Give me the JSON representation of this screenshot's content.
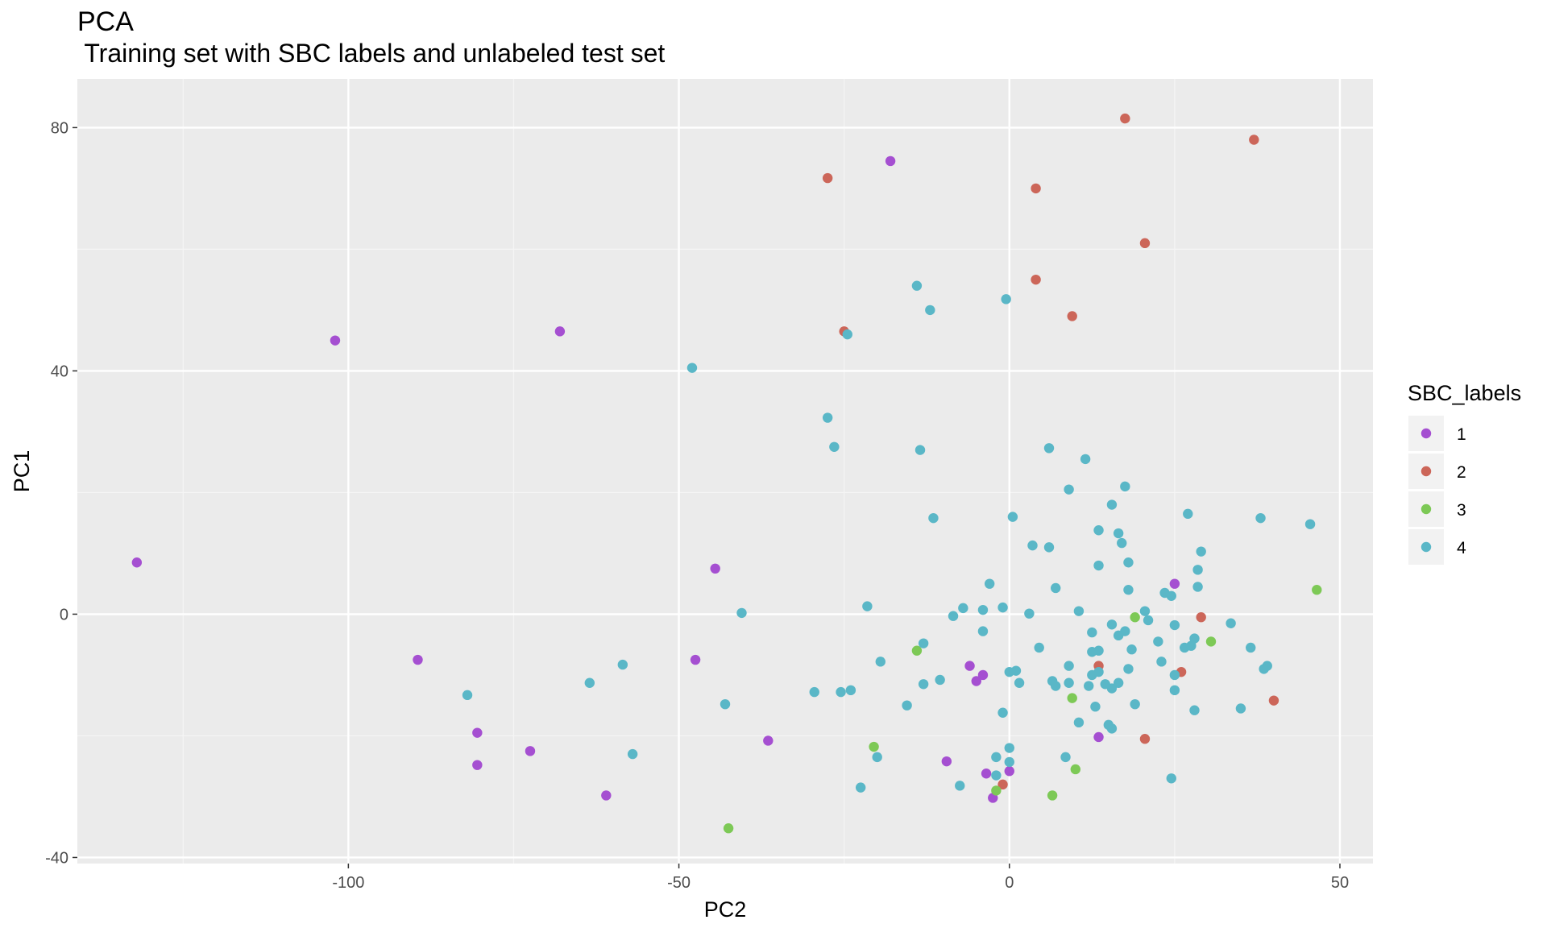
{
  "chart_data": {
    "type": "scatter",
    "title": "PCA",
    "subtitle": " Training set with SBC labels and unlabeled test set",
    "xlabel": "PC2",
    "ylabel": "PC1",
    "xlim": [
      -141,
      55
    ],
    "ylim": [
      -41,
      88
    ],
    "xticks": [
      -100,
      -50,
      0,
      50
    ],
    "yticks": [
      -40,
      0,
      40,
      80
    ],
    "xtick_labels": [
      "-100",
      "-50",
      "0",
      "50"
    ],
    "ytick_labels": [
      "-40",
      "0",
      "40",
      "80"
    ],
    "grid": true,
    "legend": {
      "title": "SBC_labels",
      "position": "right"
    },
    "series": [
      {
        "name": "1",
        "color": "#a54fd1",
        "points": [
          [
            -132,
            8.5
          ],
          [
            -102,
            45
          ],
          [
            -68,
            46.5
          ],
          [
            -18,
            74.5
          ],
          [
            -44.5,
            7.5
          ],
          [
            -89.5,
            -7.5
          ],
          [
            -47.5,
            -7.5
          ],
          [
            -80.5,
            -19.5
          ],
          [
            -80.5,
            -24.8
          ],
          [
            -72.5,
            -22.5
          ],
          [
            -61,
            -29.8
          ],
          [
            -36.5,
            -20.8
          ],
          [
            -6,
            -8.5
          ],
          [
            -5,
            -11
          ],
          [
            -4,
            -10
          ],
          [
            -9.5,
            -24.2
          ],
          [
            -3.5,
            -26.2
          ],
          [
            -2.5,
            -30.2
          ],
          [
            0,
            -25.8
          ],
          [
            13.5,
            -20.2
          ],
          [
            25,
            5
          ]
        ]
      },
      {
        "name": "2",
        "color": "#cc6659",
        "points": [
          [
            -27.5,
            71.7
          ],
          [
            4,
            70
          ],
          [
            17.5,
            81.5
          ],
          [
            37,
            78
          ],
          [
            20.5,
            61
          ],
          [
            4,
            55
          ],
          [
            9.5,
            49
          ],
          [
            -25,
            46.5
          ],
          [
            29,
            -0.5
          ],
          [
            13.5,
            -8.5
          ],
          [
            26,
            -9.5
          ],
          [
            40,
            -14.2
          ],
          [
            20.5,
            -20.5
          ],
          [
            -1,
            -28
          ]
        ]
      },
      {
        "name": "3",
        "color": "#7dc956",
        "points": [
          [
            -14,
            -6
          ],
          [
            19,
            -0.5
          ],
          [
            30.5,
            -4.5
          ],
          [
            46.5,
            4
          ],
          [
            9.5,
            -13.8
          ],
          [
            -20.5,
            -21.8
          ],
          [
            10,
            -25.5
          ],
          [
            6.5,
            -29.8
          ],
          [
            -2,
            -29
          ],
          [
            -42.5,
            -35.2
          ]
        ]
      },
      {
        "name": "4",
        "color": "#5ab7c7",
        "points": [
          [
            -14,
            54
          ],
          [
            -12,
            50
          ],
          [
            -0.5,
            51.8
          ],
          [
            -24.5,
            46
          ],
          [
            -48,
            40.5
          ],
          [
            -27.5,
            32.3
          ],
          [
            -26.5,
            27.5
          ],
          [
            -13.5,
            27
          ],
          [
            6,
            27.3
          ],
          [
            11.5,
            25.5
          ],
          [
            9,
            20.5
          ],
          [
            17.5,
            21
          ],
          [
            15.5,
            18
          ],
          [
            -11.5,
            15.8
          ],
          [
            0.5,
            16
          ],
          [
            27,
            16.5
          ],
          [
            38,
            15.8
          ],
          [
            45.5,
            14.8
          ],
          [
            3.5,
            11.3
          ],
          [
            6,
            11
          ],
          [
            13.5,
            13.8
          ],
          [
            16.5,
            13.3
          ],
          [
            17,
            11.7
          ],
          [
            29,
            10.3
          ],
          [
            13.5,
            8
          ],
          [
            18,
            8.5
          ],
          [
            28.5,
            7.3
          ],
          [
            -3,
            5
          ],
          [
            7,
            4.3
          ],
          [
            18,
            4
          ],
          [
            28.5,
            4.5
          ],
          [
            23.5,
            3.5
          ],
          [
            24.5,
            3
          ],
          [
            -21.5,
            1.3
          ],
          [
            -7,
            1
          ],
          [
            -4,
            0.7
          ],
          [
            -1,
            1.1
          ],
          [
            3,
            0.1
          ],
          [
            10.5,
            0.5
          ],
          [
            20.5,
            0.5
          ],
          [
            -8.5,
            -0.3
          ],
          [
            -40.5,
            0.2
          ],
          [
            21,
            -1
          ],
          [
            15.5,
            -1.7
          ],
          [
            25,
            -1.8
          ],
          [
            33.5,
            -1.5
          ],
          [
            -4,
            -2.8
          ],
          [
            -13,
            -4.8
          ],
          [
            4.5,
            -5.5
          ],
          [
            12.5,
            -3
          ],
          [
            16.5,
            -3.5
          ],
          [
            17.5,
            -2.8
          ],
          [
            22.5,
            -4.5
          ],
          [
            28,
            -4
          ],
          [
            26.5,
            -5.5
          ],
          [
            27.5,
            -5.2
          ],
          [
            36.5,
            -5.5
          ],
          [
            13.5,
            -6
          ],
          [
            12.5,
            -6.2
          ],
          [
            18.5,
            -5.8
          ],
          [
            -19.5,
            -7.8
          ],
          [
            -58.5,
            -8.3
          ],
          [
            0,
            -9.5
          ],
          [
            1,
            -9.3
          ],
          [
            9,
            -8.5
          ],
          [
            23,
            -7.8
          ],
          [
            39,
            -8.5
          ],
          [
            18,
            -9
          ],
          [
            25,
            -10
          ],
          [
            38.5,
            -9
          ],
          [
            12.5,
            -10
          ],
          [
            13.5,
            -9.5
          ],
          [
            -63.5,
            -11.3
          ],
          [
            1.5,
            -11.3
          ],
          [
            6.5,
            -11
          ],
          [
            7,
            -11.8
          ],
          [
            9,
            -11.3
          ],
          [
            12,
            -11.8
          ],
          [
            14.5,
            -11.5
          ],
          [
            15.5,
            -12.2
          ],
          [
            16.5,
            -11.3
          ],
          [
            25,
            -12.5
          ],
          [
            -13,
            -11.5
          ],
          [
            -10.5,
            -10.8
          ],
          [
            -82,
            -13.3
          ],
          [
            -29.5,
            -12.8
          ],
          [
            -25.5,
            -12.8
          ],
          [
            -24,
            -12.5
          ],
          [
            -15.5,
            -15
          ],
          [
            -43,
            -14.8
          ],
          [
            -1,
            -16.2
          ],
          [
            13,
            -15.2
          ],
          [
            19,
            -14.8
          ],
          [
            28,
            -15.8
          ],
          [
            35,
            -15.5
          ],
          [
            10.5,
            -17.8
          ],
          [
            15,
            -18.2
          ],
          [
            15.5,
            -18.8
          ],
          [
            -57,
            -23
          ],
          [
            -20,
            -23.5
          ],
          [
            0,
            -22
          ],
          [
            -2,
            -23.5
          ],
          [
            0,
            -24.3
          ],
          [
            8.5,
            -23.5
          ],
          [
            -2,
            -26.5
          ],
          [
            -7.5,
            -28.2
          ],
          [
            -22.5,
            -28.5
          ],
          [
            24.5,
            -27
          ]
        ]
      }
    ]
  }
}
